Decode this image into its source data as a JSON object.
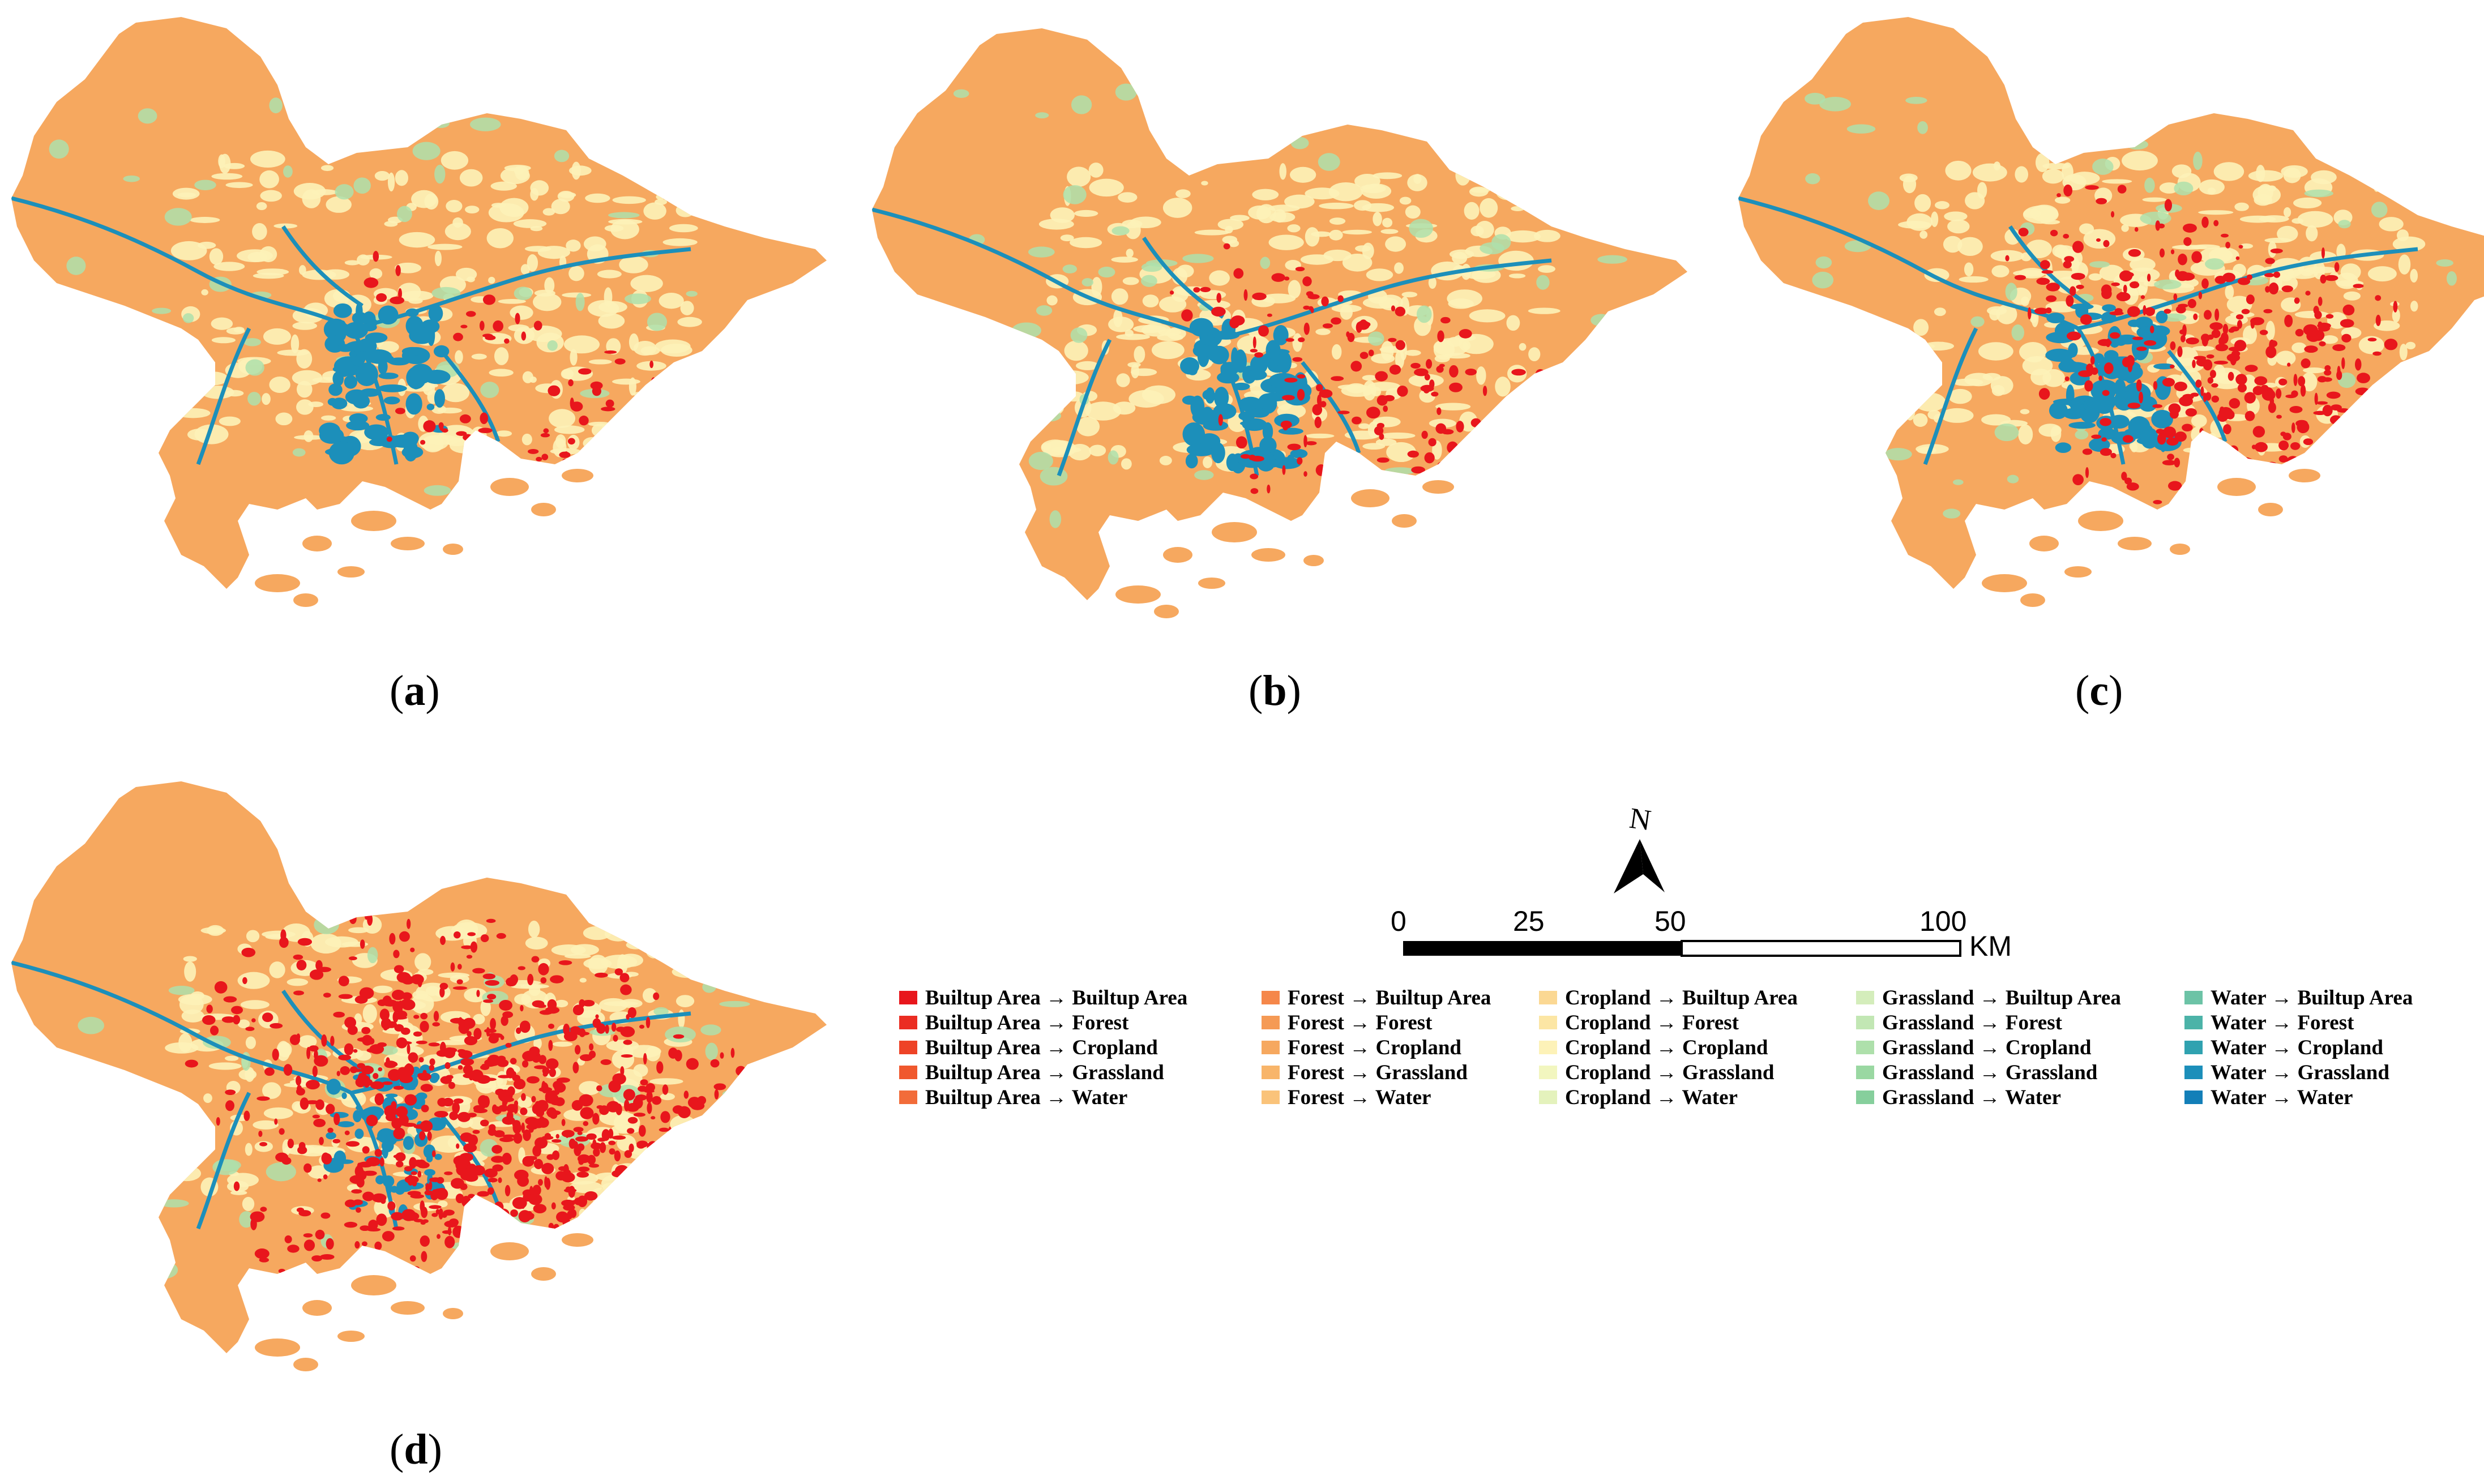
{
  "panels": [
    {
      "id": "a",
      "label_open": "(",
      "label": "a",
      "label_close": ")",
      "built_level": 1
    },
    {
      "id": "b",
      "label_open": "(",
      "label": "b",
      "label_close": ")",
      "built_level": 2
    },
    {
      "id": "c",
      "label_open": "(",
      "label": "c",
      "label_close": ")",
      "built_level": 3
    },
    {
      "id": "d",
      "label_open": "(",
      "label": "d",
      "label_close": ")",
      "built_level": 4
    }
  ],
  "north": {
    "letter": "N"
  },
  "scale": {
    "ticks": [
      "0",
      "25",
      "50",
      "100"
    ],
    "unit": "KM"
  },
  "legend": {
    "columns": [
      [
        {
          "label": "Builtup Area → Builtup Area",
          "color": "#e8161c"
        },
        {
          "label": "Builtup Area → Forest",
          "color": "#eb2d22"
        },
        {
          "label": "Builtup Area → Cropland",
          "color": "#ee4327"
        },
        {
          "label": "Builtup Area → Grassland",
          "color": "#f0582d"
        },
        {
          "label": "Builtup Area → Water",
          "color": "#f26c3a"
        }
      ],
      [
        {
          "label": "Forest → Builtup Area",
          "color": "#f5874a"
        },
        {
          "label": "Forest → Forest",
          "color": "#f59a55"
        },
        {
          "label": "Forest → Cropland",
          "color": "#f6a85f"
        },
        {
          "label": "Forest → Grassland",
          "color": "#f8b56a"
        },
        {
          "label": "Forest → Water",
          "color": "#fac37a"
        }
      ],
      [
        {
          "label": "Cropland → Builtup Area",
          "color": "#fbd893"
        },
        {
          "label": "Cropland → Forest",
          "color": "#fce6a4"
        },
        {
          "label": "Cropland → Cropland",
          "color": "#fdf2b8"
        },
        {
          "label": "Cropland → Grassland",
          "color": "#f2f6bf"
        },
        {
          "label": "Cropland → Water",
          "color": "#e4f2bc"
        }
      ],
      [
        {
          "label": "Grassland → Builtup Area",
          "color": "#d4edbb"
        },
        {
          "label": "Grassland → Forest",
          "color": "#c2e7b4"
        },
        {
          "label": "Grassland → Cropland",
          "color": "#aee0ab"
        },
        {
          "label": "Grassland → Grassland",
          "color": "#9ad8a2"
        },
        {
          "label": "Grassland → Water",
          "color": "#86cf9c"
        }
      ],
      [
        {
          "label": "Water → Builtup Area",
          "color": "#6cc3a6"
        },
        {
          "label": "Water → Forest",
          "color": "#4cb3a8"
        },
        {
          "label": "Water → Cropland",
          "color": "#30a2b0"
        },
        {
          "label": "Water → Grassland",
          "color": "#1c8fba"
        },
        {
          "label": "Water → Water",
          "color": "#137fb8"
        }
      ]
    ]
  },
  "colors": {
    "forest": "#f6a85f",
    "cropland": "#fdf2b8",
    "grassland": "#aee0ab",
    "water": "#1c8fba",
    "builtup": "#e8161c"
  }
}
